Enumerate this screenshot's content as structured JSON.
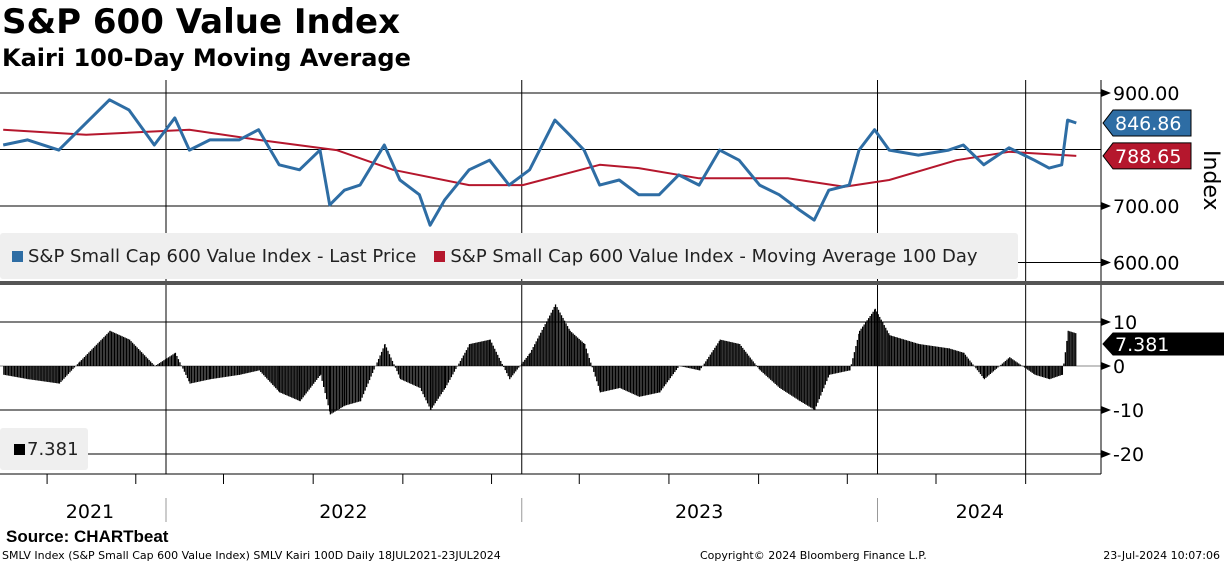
{
  "header": {
    "title": "S&P 600 Value Index",
    "subtitle": "Kairi 100-Day Moving Average"
  },
  "source": "Source: CHARTbeat",
  "footer": {
    "left": "SMLV Index (S&P Small Cap 600 Value Index) SMLV Kairi 100D  Daily 18JUL2021-23JUL2024",
    "center": "Copyright© 2024 Bloomberg Finance L.P.",
    "right": "23-Jul-2024 10:07:06"
  },
  "colors": {
    "price": "#2e6da4",
    "ma": "#b5172d",
    "kairi": "#000000",
    "legend_bg": "#efefef"
  },
  "chart_data": [
    {
      "type": "line",
      "ylabel": "Index",
      "ylim": [
        590,
        915
      ],
      "yticks": [
        "900.00",
        "700.00",
        "600.00"
      ],
      "ytick_values": [
        900,
        700,
        600
      ],
      "xticks": [
        "2021",
        "2022",
        "2023",
        "2024"
      ],
      "grid": true,
      "legend_placement": "bottom-left",
      "series": [
        {
          "name": "S&P Small Cap 600 Value Index - Last Price",
          "last": "846.86",
          "points": [
            [
              "2021-07-18",
              808
            ],
            [
              "2021-08-12",
              817
            ],
            [
              "2021-09-13",
              799
            ],
            [
              "2021-10-04",
              835
            ],
            [
              "2021-11-04",
              888
            ],
            [
              "2021-11-24",
              870
            ],
            [
              "2021-12-20",
              808
            ],
            [
              "2022-01-10",
              856
            ],
            [
              "2022-01-25",
              799
            ],
            [
              "2022-02-15",
              817
            ],
            [
              "2022-03-17",
              817
            ],
            [
              "2022-04-06",
              835
            ],
            [
              "2022-04-27",
              773
            ],
            [
              "2022-05-18",
              764
            ],
            [
              "2022-06-08",
              799
            ],
            [
              "2022-06-18",
              702
            ],
            [
              "2022-07-03",
              728
            ],
            [
              "2022-07-19",
              737
            ],
            [
              "2022-08-13",
              808
            ],
            [
              "2022-08-29",
              746
            ],
            [
              "2022-09-18",
              720
            ],
            [
              "2022-09-29",
              666
            ],
            [
              "2022-10-14",
              711
            ],
            [
              "2022-11-08",
              764
            ],
            [
              "2022-11-29",
              781
            ],
            [
              "2022-12-19",
              737
            ],
            [
              "2023-01-09",
              764
            ],
            [
              "2023-02-04",
              852
            ],
            [
              "2023-02-19",
              826
            ],
            [
              "2023-03-06",
              799
            ],
            [
              "2023-03-22",
              737
            ],
            [
              "2023-04-11",
              746
            ],
            [
              "2023-05-01",
              720
            ],
            [
              "2023-05-22",
              720
            ],
            [
              "2023-06-11",
              755
            ],
            [
              "2023-07-02",
              737
            ],
            [
              "2023-07-23",
              799
            ],
            [
              "2023-08-12",
              781
            ],
            [
              "2023-09-02",
              737
            ],
            [
              "2023-09-22",
              720
            ],
            [
              "2023-10-13",
              693
            ],
            [
              "2023-10-28",
              675
            ],
            [
              "2023-11-12",
              728
            ],
            [
              "2023-12-03",
              737
            ],
            [
              "2023-12-13",
              799
            ],
            [
              "2023-12-29",
              835
            ],
            [
              "2024-01-13",
              799
            ],
            [
              "2024-02-12",
              790
            ],
            [
              "2024-03-14",
              799
            ],
            [
              "2024-03-29",
              808
            ],
            [
              "2024-04-19",
              773
            ],
            [
              "2024-05-15",
              803
            ],
            [
              "2024-06-10",
              781
            ],
            [
              "2024-06-25",
              767
            ],
            [
              "2024-07-08",
              773
            ],
            [
              "2024-07-14",
              852
            ],
            [
              "2024-07-23",
              846.86
            ]
          ]
        },
        {
          "name": "S&P Small Cap 600 Value Index - Moving Average 100 Day",
          "last": "788.65",
          "points": [
            [
              "2021-07-18",
              835
            ],
            [
              "2021-10-11",
              826
            ],
            [
              "2022-01-25",
              835
            ],
            [
              "2022-04-06",
              817
            ],
            [
              "2022-06-25",
              799
            ],
            [
              "2022-08-22",
              764
            ],
            [
              "2022-11-08",
              737
            ],
            [
              "2023-01-02",
              737
            ],
            [
              "2023-03-22",
              773
            ],
            [
              "2023-05-01",
              767
            ],
            [
              "2023-07-02",
              749
            ],
            [
              "2023-10-01",
              749
            ],
            [
              "2023-11-28",
              734
            ],
            [
              "2024-01-13",
              746
            ],
            [
              "2024-03-22",
              781
            ],
            [
              "2024-05-15",
              796
            ],
            [
              "2024-07-23",
              788.65
            ]
          ]
        }
      ]
    },
    {
      "type": "bar",
      "ylim": [
        -25,
        18
      ],
      "yticks": [
        "10",
        "0",
        "-10",
        "-20"
      ],
      "ytick_values": [
        10,
        0,
        -10,
        -20
      ],
      "series": [
        {
          "name": "7.381",
          "last": "7.381",
          "points": [
            [
              "2021-07-18",
              -2
            ],
            [
              "2021-08-12",
              -3
            ],
            [
              "2021-09-13",
              -4
            ],
            [
              "2021-10-04",
              1
            ],
            [
              "2021-11-04",
              8
            ],
            [
              "2021-11-24",
              6
            ],
            [
              "2021-12-20",
              0
            ],
            [
              "2022-01-10",
              3
            ],
            [
              "2022-01-25",
              -4
            ],
            [
              "2022-02-15",
              -3
            ],
            [
              "2022-03-17",
              -2
            ],
            [
              "2022-04-06",
              -1
            ],
            [
              "2022-04-27",
              -6
            ],
            [
              "2022-05-18",
              -8
            ],
            [
              "2022-06-08",
              -2
            ],
            [
              "2022-06-18",
              -11
            ],
            [
              "2022-07-03",
              -9
            ],
            [
              "2022-07-19",
              -8
            ],
            [
              "2022-08-13",
              5
            ],
            [
              "2022-08-29",
              -3
            ],
            [
              "2022-09-18",
              -5
            ],
            [
              "2022-09-29",
              -10
            ],
            [
              "2022-10-14",
              -5
            ],
            [
              "2022-11-08",
              5
            ],
            [
              "2022-11-29",
              6
            ],
            [
              "2022-12-19",
              -3
            ],
            [
              "2023-01-09",
              3
            ],
            [
              "2023-02-04",
              14
            ],
            [
              "2023-02-19",
              8
            ],
            [
              "2023-03-06",
              5
            ],
            [
              "2023-03-22",
              -6
            ],
            [
              "2023-04-11",
              -5
            ],
            [
              "2023-05-01",
              -7
            ],
            [
              "2023-05-22",
              -6
            ],
            [
              "2023-06-11",
              0
            ],
            [
              "2023-07-02",
              -1
            ],
            [
              "2023-07-23",
              6
            ],
            [
              "2023-08-12",
              5
            ],
            [
              "2023-09-02",
              -1
            ],
            [
              "2023-09-22",
              -5
            ],
            [
              "2023-10-13",
              -8
            ],
            [
              "2023-10-28",
              -10
            ],
            [
              "2023-11-12",
              -2
            ],
            [
              "2023-12-03",
              -1
            ],
            [
              "2023-12-13",
              8
            ],
            [
              "2023-12-29",
              13
            ],
            [
              "2024-01-13",
              7
            ],
            [
              "2024-02-12",
              5
            ],
            [
              "2024-03-14",
              4
            ],
            [
              "2024-03-29",
              3
            ],
            [
              "2024-04-19",
              -3
            ],
            [
              "2024-05-15",
              2
            ],
            [
              "2024-06-10",
              -2
            ],
            [
              "2024-06-25",
              -3
            ],
            [
              "2024-07-08",
              -2
            ],
            [
              "2024-07-14",
              8
            ],
            [
              "2024-07-23",
              7.381
            ]
          ]
        }
      ]
    }
  ]
}
